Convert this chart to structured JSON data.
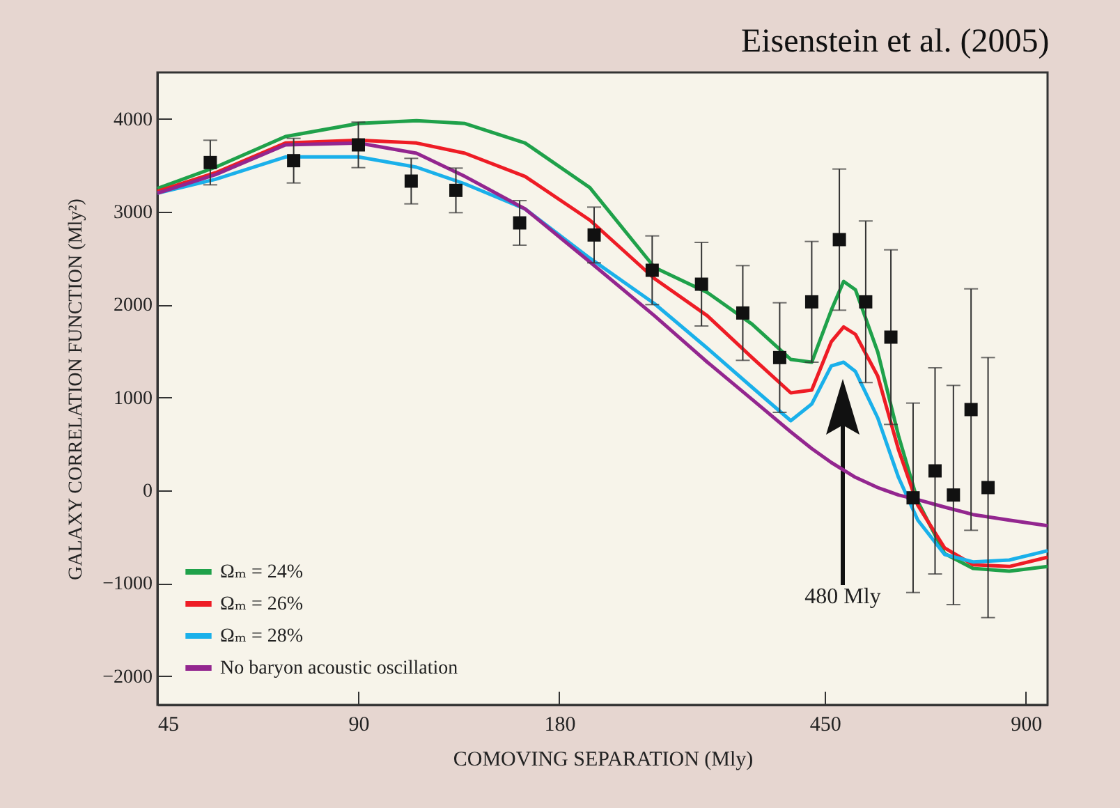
{
  "chart_data": {
    "type": "line",
    "title": "Eisenstein et al. (2005)",
    "xlabel": "COMOVING SEPARATION (Mly)",
    "ylabel": "GALAXY CORRELATION FUNCTION (Mly²)",
    "log": "x",
    "xlim": [
      45,
      970
    ],
    "xticks": [
      45,
      90,
      180,
      450,
      900
    ],
    "ylim": [
      -2310,
      4500
    ],
    "yticks": [
      -2000,
      -1000,
      0,
      1000,
      2000,
      3000,
      4000
    ],
    "grid": false,
    "legend": "bottom left",
    "line_style": "solid",
    "annotations": [
      "480 Mly"
    ],
    "series": [
      {
        "name": "Ωₘ = 24%",
        "color": "#1fa14a",
        "type": "line",
        "x": [
          45,
          55,
          70,
          90,
          110,
          130,
          160,
          200,
          250,
          300,
          350,
          400,
          430,
          460,
          480,
          500,
          540,
          580,
          620,
          680,
          750,
          850,
          970
        ],
        "values": [
          3250,
          3480,
          3810,
          3950,
          3980,
          3950,
          3740,
          3260,
          2400,
          2130,
          1790,
          1410,
          1380,
          1940,
          2250,
          2160,
          1490,
          590,
          -120,
          -680,
          -840,
          -870,
          -820
        ]
      },
      {
        "name": "Ωₘ = 26%",
        "color": "#ee1c25",
        "type": "line",
        "x": [
          45,
          55,
          70,
          90,
          110,
          130,
          160,
          200,
          250,
          300,
          350,
          400,
          430,
          460,
          480,
          500,
          540,
          580,
          620,
          680,
          750,
          850,
          970
        ],
        "values": [
          3220,
          3420,
          3740,
          3770,
          3740,
          3630,
          3380,
          2910,
          2280,
          1880,
          1430,
          1050,
          1080,
          1600,
          1760,
          1680,
          1230,
          440,
          -160,
          -620,
          -800,
          -820,
          -720
        ]
      },
      {
        "name": "Ωₘ = 28%",
        "color": "#1ab0ea",
        "type": "line",
        "x": [
          45,
          55,
          70,
          90,
          110,
          130,
          160,
          200,
          250,
          300,
          350,
          400,
          430,
          460,
          480,
          500,
          540,
          580,
          620,
          680,
          750,
          850,
          970
        ],
        "values": [
          3200,
          3350,
          3590,
          3590,
          3480,
          3300,
          3030,
          2500,
          2010,
          1530,
          1110,
          750,
          930,
          1340,
          1380,
          1280,
          780,
          140,
          -320,
          -690,
          -770,
          -750,
          -650
        ]
      },
      {
        "name": "No baryon acoustic oscillation",
        "color": "#93268f",
        "type": "line",
        "x": [
          45,
          55,
          70,
          90,
          110,
          130,
          160,
          200,
          250,
          300,
          350,
          400,
          430,
          460,
          500,
          540,
          580,
          620,
          680,
          750,
          850,
          970
        ],
        "values": [
          3200,
          3400,
          3720,
          3740,
          3630,
          3380,
          3030,
          2460,
          1880,
          1380,
          980,
          630,
          450,
          300,
          140,
          30,
          -50,
          -100,
          -180,
          -260,
          -320,
          -380
        ]
      },
      {
        "color": "#111111",
        "type": "scatter",
        "marker": "square",
        "x": [
          54,
          72,
          90,
          108,
          126,
          157,
          203,
          248,
          294,
          339,
          385,
          430,
          473,
          518,
          565,
          610,
          658,
          701,
          745,
          790
        ],
        "values": [
          3530,
          3550,
          3720,
          3330,
          3230,
          2880,
          2750,
          2370,
          2220,
          1910,
          1430,
          2030,
          2700,
          2030,
          1650,
          -80,
          210,
          -50,
          870,
          30
        ],
        "errors": [
          240,
          240,
          245,
          245,
          240,
          240,
          300,
          370,
          450,
          510,
          590,
          650,
          760,
          870,
          940,
          1020,
          1110,
          1180,
          1300,
          1400
        ]
      }
    ]
  }
}
